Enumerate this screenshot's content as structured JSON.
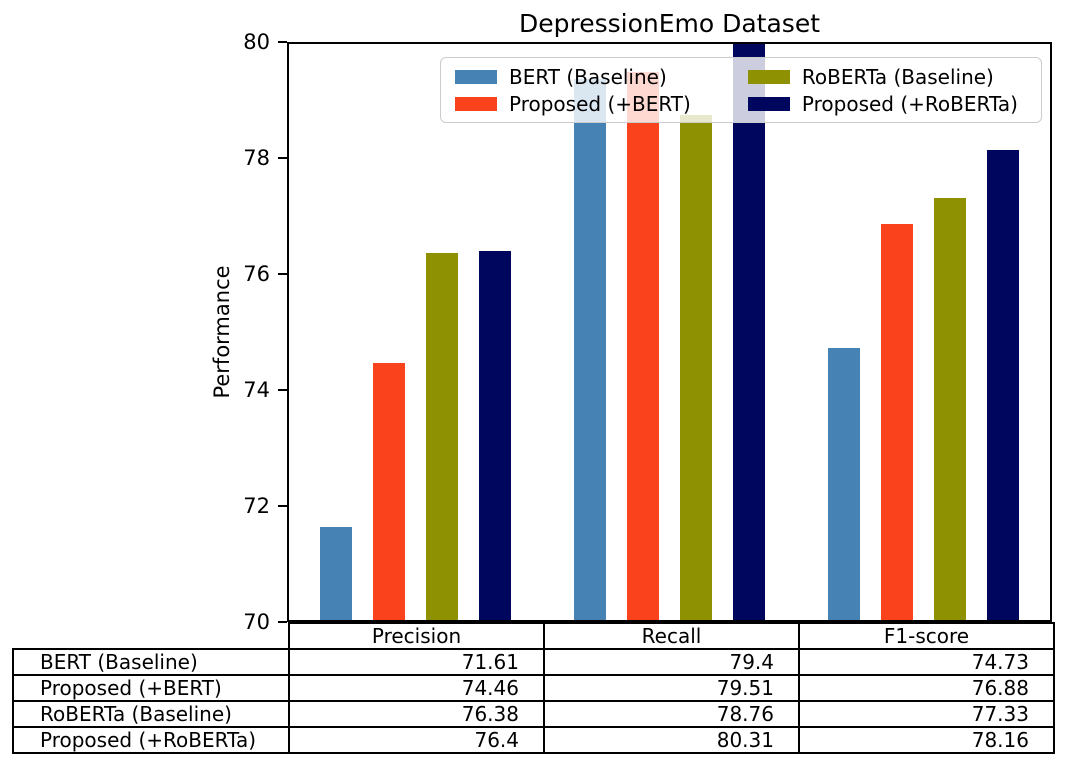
{
  "chart_data": {
    "type": "bar",
    "title": "DepressionEmo Dataset",
    "xlabel": "",
    "ylabel": "Performance",
    "ylim": [
      70,
      80
    ],
    "yticks": [
      70,
      72,
      74,
      76,
      78,
      80
    ],
    "grid": false,
    "legend_position": "upper center, 2 columns, semi-transparent",
    "categories": [
      "Precision",
      "Recall",
      "F1-score"
    ],
    "series": [
      {
        "name": "BERT (Baseline)",
        "color": "#4682b4",
        "values": [
          71.61,
          79.4,
          74.73
        ]
      },
      {
        "name": "Proposed (+BERT)",
        "color": "#fa431d",
        "values": [
          74.46,
          79.51,
          76.88
        ]
      },
      {
        "name": "RoBERTa (Baseline)",
        "color": "#8e9202",
        "values": [
          76.38,
          78.76,
          77.33
        ]
      },
      {
        "name": "Proposed (+RoBERTa)",
        "color": "#00055e",
        "values": [
          76.4,
          80.31,
          78.16
        ]
      }
    ]
  },
  "table": {
    "col_headers": [
      "Precision",
      "Recall",
      "F1-score"
    ],
    "rows": [
      {
        "label": "BERT (Baseline)",
        "values": [
          "71.61",
          "79.4",
          "74.73"
        ]
      },
      {
        "label": "Proposed (+BERT)",
        "values": [
          "74.46",
          "79.51",
          "76.88"
        ]
      },
      {
        "label": "RoBERTa (Baseline)",
        "values": [
          "76.38",
          "78.76",
          "77.33"
        ]
      },
      {
        "label": "Proposed (+RoBERTa)",
        "values": [
          "76.4",
          "80.31",
          "78.16"
        ]
      }
    ]
  }
}
